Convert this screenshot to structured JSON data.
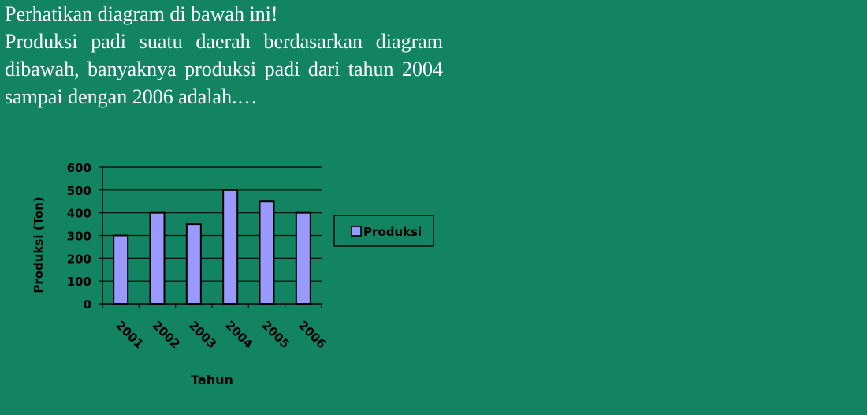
{
  "question": {
    "intro": "Perhatikan diagram di bawah ini!",
    "text": "Produksi padi suatu daerah berdasarkan diagram dibawah, banyaknya produksi padi dari tahun 2004 sampai dengan 2006 adalah.…"
  },
  "colors": {
    "background": "#128462",
    "bar_fill": "#9999ff",
    "text": "#ffffff"
  },
  "chart_data": {
    "type": "bar",
    "categories": [
      "2001",
      "2002",
      "2003",
      "2004",
      "2005",
      "2006"
    ],
    "series": [
      {
        "name": "Produksi",
        "values": [
          300,
          400,
          350,
          500,
          450,
          400
        ]
      }
    ],
    "xlabel": "Tahun",
    "ylabel": "Produksi (Ton)",
    "ylim": [
      0,
      600
    ],
    "yticks": [
      0,
      100,
      200,
      300,
      400,
      500,
      600
    ],
    "grid": true,
    "legend": "right"
  }
}
